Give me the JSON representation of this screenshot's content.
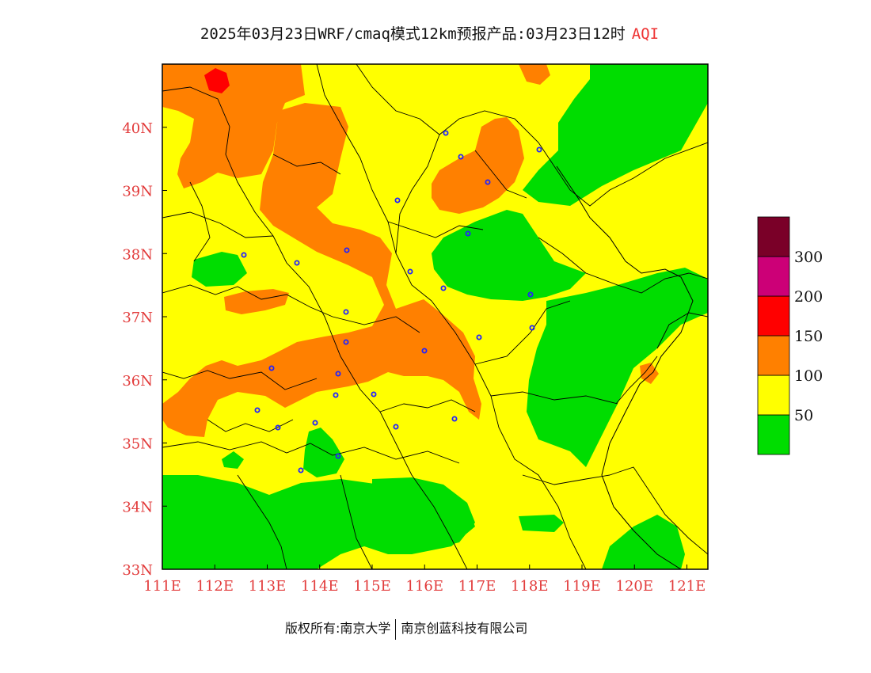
{
  "title": {
    "main": "2025年03月23日WRF/cmaq模式12km预报产品:03月23日12时",
    "variable": "AQI"
  },
  "axes": {
    "x_ticks": [
      "111E",
      "112E",
      "113E",
      "114E",
      "115E",
      "116E",
      "117E",
      "118E",
      "119E",
      "120E",
      "121E"
    ],
    "y_ticks": [
      "33N",
      "34N",
      "35N",
      "36N",
      "37N",
      "38N",
      "39N",
      "40N"
    ],
    "lon_range": [
      111,
      121.4
    ],
    "lat_range": [
      33,
      41
    ]
  },
  "colorbar": {
    "labels": [
      "50",
      "100",
      "150",
      "200",
      "300"
    ],
    "colors": [
      "#00dd00",
      "#ffff00",
      "#ff8000",
      "#ff0000",
      "#cc0077",
      "#7a0028"
    ]
  },
  "colors": {
    "good": "#00dd00",
    "moderate": "#ffff00",
    "sensitive": "#ff8000",
    "unhealthy": "#ff0000",
    "axis_label": "#e23b3b",
    "city_marker": "#2222ff"
  },
  "footer": {
    "left": "版权所有:南京大学",
    "right": "南京创蓝科技有限公司"
  }
}
